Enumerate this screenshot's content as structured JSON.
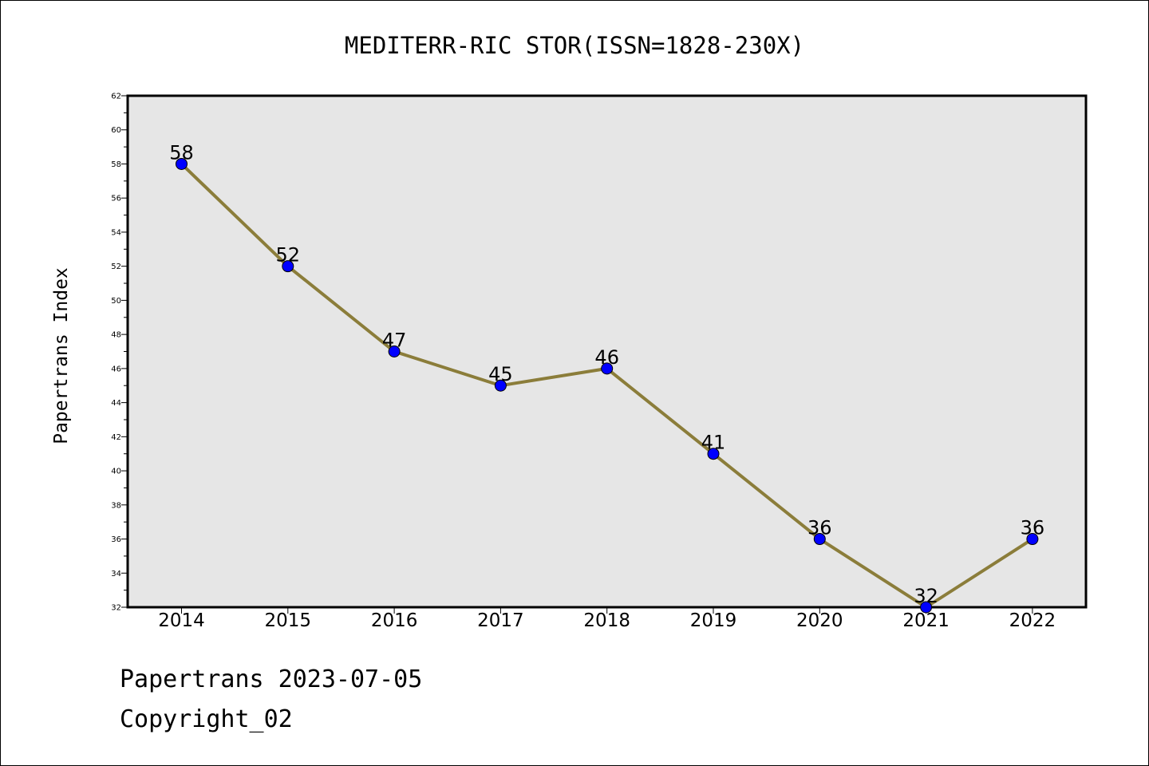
{
  "chart_data": {
    "type": "line",
    "title": "MEDITERR-RIC STOR(ISSN=1828-230X)",
    "xlabel": "",
    "ylabel": "Papertrans Index",
    "categories": [
      "2014",
      "2015",
      "2016",
      "2017",
      "2018",
      "2019",
      "2020",
      "2021",
      "2022"
    ],
    "series": [
      {
        "values": [
          58,
          52,
          47,
          45,
          46,
          41,
          36,
          32,
          36
        ]
      }
    ],
    "ylim": [
      32,
      62
    ],
    "yticks": [
      32,
      34,
      36,
      38,
      40,
      42,
      44,
      46,
      48,
      50,
      52,
      54,
      56,
      58,
      60,
      62
    ],
    "grid": false,
    "data_labels": true,
    "colors": {
      "line": "#8b7d3a",
      "marker": "#0000ff",
      "plot_bg": "#e6e6e6"
    }
  },
  "footer": {
    "line1": "Papertrans 2023-07-05",
    "line2": "Copyright_02"
  }
}
